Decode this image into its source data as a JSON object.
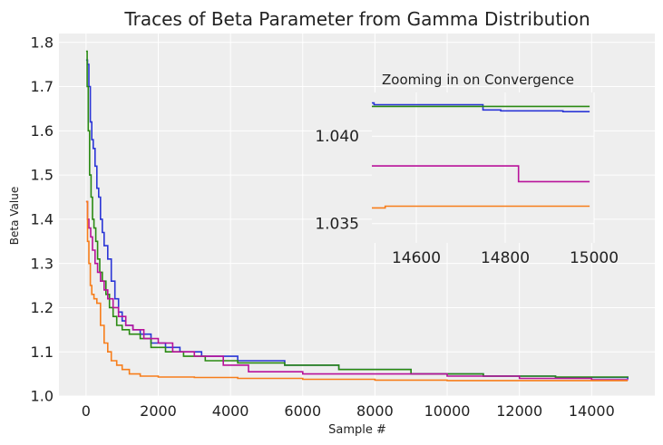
{
  "chart_data": [
    {
      "type": "line",
      "title": "Traces of Beta Parameter from Gamma Distribution",
      "xlabel": "Sample #",
      "ylabel": "Beta Value",
      "xlim": [
        -750,
        15750
      ],
      "ylim": [
        1.0,
        1.82
      ],
      "xticks": [
        0,
        2000,
        4000,
        6000,
        8000,
        10000,
        12000,
        14000
      ],
      "xtick_labels": [
        "0",
        "2000",
        "4000",
        "6000",
        "8000",
        "10000",
        "12000",
        "14000"
      ],
      "yticks": [
        1.0,
        1.1,
        1.2,
        1.3,
        1.4,
        1.5,
        1.6,
        1.7,
        1.8
      ],
      "ytick_labels": [
        "1.0",
        "1.1",
        "1.2",
        "1.3",
        "1.4",
        "1.5",
        "1.6",
        "1.7",
        "1.8"
      ],
      "grid": true,
      "legend": "none",
      "series": [
        {
          "color": "#2a35d6",
          "x": [
            0,
            40,
            80,
            120,
            160,
            200,
            250,
            300,
            350,
            400,
            450,
            500,
            600,
            700,
            800,
            900,
            1000,
            1100,
            1300,
            1500,
            1800,
            2200,
            2600,
            3200,
            4200,
            5500,
            7000,
            9000,
            11000,
            13000,
            15000
          ],
          "y": [
            1.76,
            1.75,
            1.7,
            1.62,
            1.58,
            1.56,
            1.52,
            1.47,
            1.45,
            1.4,
            1.37,
            1.34,
            1.31,
            1.26,
            1.22,
            1.19,
            1.17,
            1.16,
            1.15,
            1.14,
            1.12,
            1.11,
            1.1,
            1.09,
            1.08,
            1.07,
            1.06,
            1.05,
            1.045,
            1.042,
            1.039
          ]
        },
        {
          "color": "#2a8a12",
          "x": [
            0,
            30,
            60,
            100,
            140,
            180,
            220,
            270,
            320,
            380,
            450,
            550,
            650,
            750,
            850,
            1000,
            1200,
            1500,
            1800,
            2200,
            2700,
            3300,
            4200,
            5500,
            7000,
            9000,
            11000,
            13000,
            15000
          ],
          "y": [
            1.78,
            1.7,
            1.6,
            1.5,
            1.45,
            1.4,
            1.38,
            1.35,
            1.31,
            1.28,
            1.26,
            1.23,
            1.2,
            1.18,
            1.16,
            1.15,
            1.14,
            1.13,
            1.11,
            1.1,
            1.09,
            1.08,
            1.075,
            1.07,
            1.06,
            1.05,
            1.045,
            1.043,
            1.042
          ]
        },
        {
          "color": "#b8129a",
          "x": [
            0,
            40,
            80,
            130,
            180,
            250,
            320,
            400,
            500,
            600,
            750,
            900,
            1100,
            1300,
            1600,
            2000,
            2400,
            3000,
            3800,
            4500,
            6000,
            8000,
            10000,
            12000,
            14000,
            15000
          ],
          "y": [
            1.44,
            1.4,
            1.38,
            1.36,
            1.33,
            1.3,
            1.28,
            1.26,
            1.24,
            1.22,
            1.2,
            1.18,
            1.16,
            1.15,
            1.13,
            1.12,
            1.1,
            1.09,
            1.07,
            1.055,
            1.05,
            1.05,
            1.045,
            1.04,
            1.037,
            1.036
          ]
        },
        {
          "color": "#f77d1a",
          "x": [
            0,
            40,
            80,
            120,
            160,
            220,
            300,
            400,
            500,
            600,
            700,
            850,
            1000,
            1200,
            1500,
            2000,
            3000,
            4200,
            6000,
            8000,
            10000,
            12000,
            15000
          ],
          "y": [
            1.44,
            1.35,
            1.3,
            1.25,
            1.23,
            1.22,
            1.21,
            1.16,
            1.12,
            1.1,
            1.08,
            1.07,
            1.06,
            1.05,
            1.045,
            1.043,
            1.042,
            1.04,
            1.038,
            1.036,
            1.035,
            1.035,
            1.035
          ]
        }
      ]
    },
    {
      "type": "line",
      "title": "Zooming in on Convergence",
      "xlabel": "",
      "ylabel": "",
      "xlim": [
        14500,
        15000
      ],
      "ylim": [
        1.0339,
        1.0425
      ],
      "xticks": [
        14600,
        14800,
        15000
      ],
      "xtick_labels": [
        "14600",
        "14800",
        "15000"
      ],
      "yticks": [
        1.035,
        1.04
      ],
      "ytick_labels": [
        "1.035",
        "1.040"
      ],
      "grid": true,
      "legend": "none",
      "series": [
        {
          "color": "#2a35d6",
          "x": [
            14500,
            14505,
            14505,
            14750,
            14750,
            14790,
            14790,
            14930,
            14930,
            14990
          ],
          "y": [
            1.0419,
            1.0419,
            1.0418,
            1.0418,
            1.0415,
            1.0415,
            1.04145,
            1.04145,
            1.0414,
            1.0414
          ]
        },
        {
          "color": "#2a8a12",
          "x": [
            14500,
            14990
          ],
          "y": [
            1.0417,
            1.0417
          ]
        },
        {
          "color": "#b8129a",
          "x": [
            14500,
            14830,
            14830,
            14990
          ],
          "y": [
            1.0383,
            1.0383,
            1.0374,
            1.0374
          ]
        },
        {
          "color": "#f77d1a",
          "x": [
            14500,
            14530,
            14530,
            14990
          ],
          "y": [
            1.0359,
            1.0359,
            1.036,
            1.036
          ]
        }
      ]
    }
  ]
}
